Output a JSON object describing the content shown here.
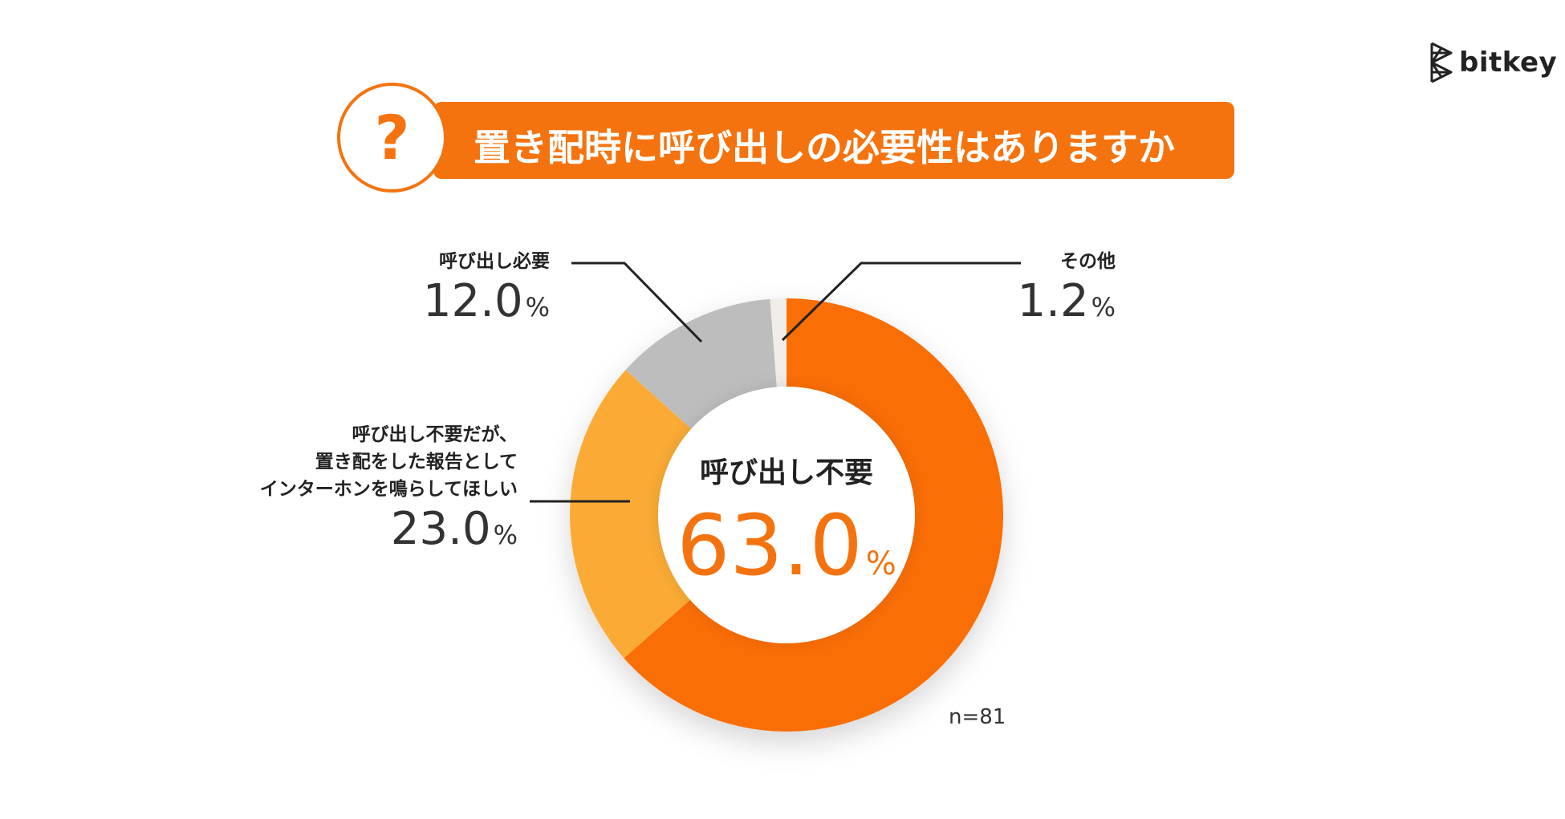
{
  "title": "置き配時に呼び出しの必要性はありますか",
  "question_mark": "?",
  "logo_text": "bitkey",
  "sample_size": "n=81",
  "percent_sign": "%",
  "colors": {
    "accent": "#f5730f",
    "slice_main": "#fa6e06",
    "slice_secondary": "#fbab35",
    "slice_gray": "#bdbdbd",
    "slice_other": "#f1ede8"
  },
  "chart_data": {
    "type": "pie",
    "title": "置き配時に呼び出しの必要性はありますか",
    "unit": "%",
    "labels": [
      "呼び出し不要",
      "呼び出し不要だが、置き配をした報告としてインターホンを鳴らしてほしい",
      "呼び出し必要",
      "その他"
    ],
    "values": [
      63.0,
      23.0,
      12.0,
      1.2
    ],
    "value_labels": [
      "63.0",
      "23.0",
      "12.0",
      "1.2"
    ],
    "label_lines": [
      [
        "呼び出し不要"
      ],
      [
        "呼び出し不要だが、",
        "置き配をした報告として",
        "インターホンを鳴らしてほしい"
      ],
      [
        "呼び出し必要"
      ],
      [
        "その他"
      ]
    ],
    "colors": [
      "#fa6e06",
      "#fbab35",
      "#bdbdbd",
      "#f1ede8"
    ],
    "style": "donut",
    "legend": "none"
  }
}
